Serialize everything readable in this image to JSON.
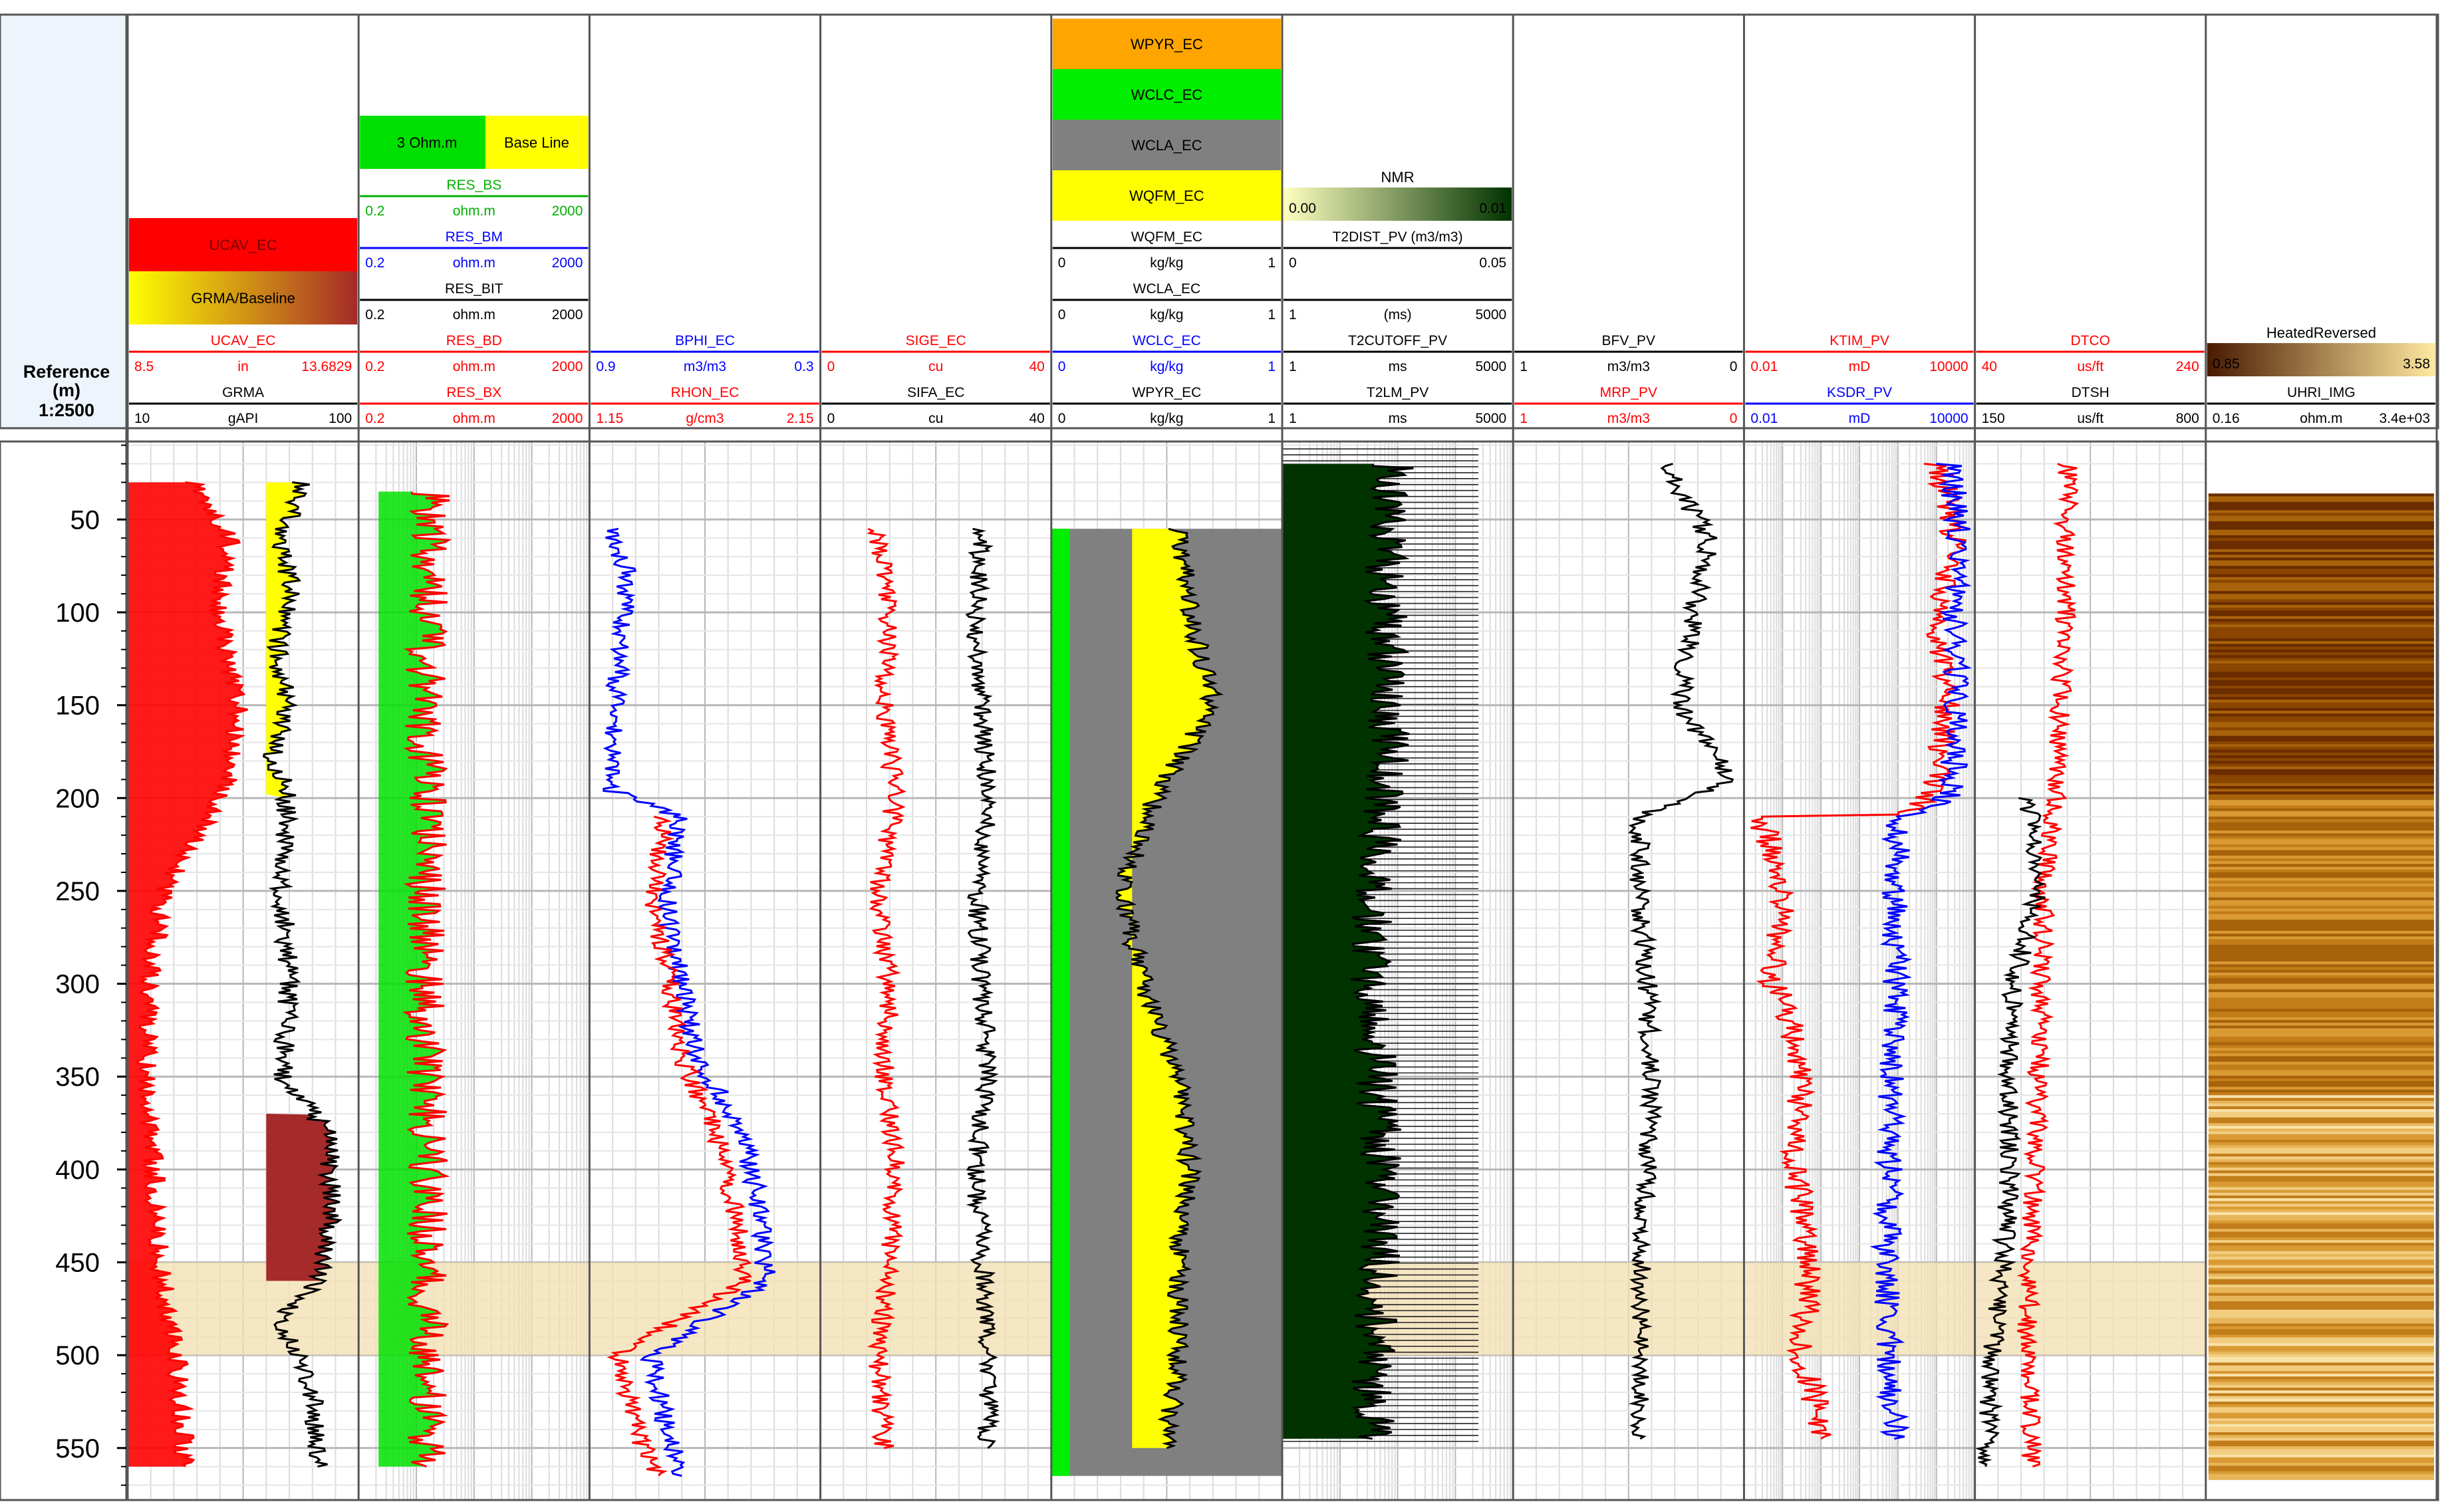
{
  "depth_column": {
    "title_line1": "Reference",
    "title_line2": "(m)",
    "scale": "1:2500",
    "ticks": [
      "50",
      "100",
      "150",
      "200",
      "250",
      "300",
      "350",
      "400",
      "450",
      "500",
      "550"
    ],
    "tick_values": [
      50,
      100,
      150,
      200,
      250,
      300,
      350,
      400,
      450,
      500,
      550
    ]
  },
  "highlight": {
    "from": 450,
    "to": 500,
    "color": "#f3dfb0"
  },
  "tracks": [
    {
      "id": "t1",
      "fills": [
        {
          "label": "UCAV_EC",
          "color": "#ff0000",
          "text_color": "#7a0000"
        },
        {
          "label": "GRMA/Baseline",
          "color_left": "#ffff00",
          "color_right": "#a52a2a",
          "text_color": "#000000"
        }
      ],
      "curves": [
        {
          "name": "UCAV_EC",
          "color": "#ff0000",
          "min": "8.5",
          "unit": "in",
          "max": "13.6829"
        },
        {
          "name": "GRMA",
          "color": "#000000",
          "min": "10",
          "unit": "gAPI",
          "max": "100"
        }
      ]
    },
    {
      "id": "t2",
      "fills": [
        {
          "label_left": "3 Ohm.m",
          "label_right": "Base Line",
          "color_left": "#00e000",
          "color_right": "#ffff00"
        }
      ],
      "curves": [
        {
          "name": "RES_BS",
          "color": "#00b000",
          "min": "0.2",
          "unit": "ohm.m",
          "max": "2000"
        },
        {
          "name": "RES_BM",
          "color": "#0000ff",
          "min": "0.2",
          "unit": "ohm.m",
          "max": "2000"
        },
        {
          "name": "RES_BIT",
          "color": "#000000",
          "min": "0.2",
          "unit": "ohm.m",
          "max": "2000"
        },
        {
          "name": "RES_BD",
          "color": "#ff0000",
          "min": "0.2",
          "unit": "ohm.m",
          "max": "2000"
        },
        {
          "name": "RES_BX",
          "color": "#ff0000",
          "min": "0.2",
          "unit": "ohm.m",
          "max": "2000"
        }
      ]
    },
    {
      "id": "t3",
      "fills": [],
      "curves": [
        {
          "name": "BPHI_EC",
          "color": "#0000ff",
          "min": "0.9",
          "unit": "m3/m3",
          "max": "0.3"
        },
        {
          "name": "RHON_EC",
          "color": "#ff0000",
          "min": "1.15",
          "unit": "g/cm3",
          "max": "2.15"
        }
      ]
    },
    {
      "id": "t4",
      "fills": [],
      "curves": [
        {
          "name": "SIGE_EC",
          "color": "#ff0000",
          "min": "0",
          "unit": "cu",
          "max": "40"
        },
        {
          "name": "SIFA_EC",
          "color": "#000000",
          "min": "0",
          "unit": "cu",
          "max": "40"
        }
      ]
    },
    {
      "id": "t5",
      "fills": [
        {
          "label": "WPYR_EC",
          "color": "#ffa500"
        },
        {
          "label": "WCLC_EC",
          "color": "#00ee00"
        },
        {
          "label": "WCLA_EC",
          "color": "#808080"
        },
        {
          "label": "WQFM_EC",
          "color": "#ffff00"
        }
      ],
      "curves": [
        {
          "name": "WQFM_EC",
          "color": "#000000",
          "min": "0",
          "unit": "kg/kg",
          "max": "1"
        },
        {
          "name": "WCLA_EC",
          "color": "#000000",
          "min": "0",
          "unit": "kg/kg",
          "max": "1"
        },
        {
          "name": "WCLC_EC",
          "color": "#0000ff",
          "min": "0",
          "unit": "kg/kg",
          "max": "1"
        },
        {
          "name": "WPYR_EC",
          "color": "#000000",
          "min": "0",
          "unit": "kg/kg",
          "max": "1"
        }
      ]
    },
    {
      "id": "t6",
      "fills": [
        {
          "label": "NMR",
          "min": "0.00",
          "max": "0.01",
          "color_left": "#ffffc0",
          "color_right": "#003300"
        }
      ],
      "curves": [
        {
          "name": "T2DIST_PV (m3/m3)",
          "color": "#000000",
          "min": "0",
          "unit": "",
          "max": "0.05"
        },
        {
          "name": "",
          "color": "#000000",
          "min": "1",
          "unit": "(ms)",
          "max": "5000"
        },
        {
          "name": "T2CUTOFF_PV",
          "color": "#000000",
          "min": "1",
          "unit": "ms",
          "max": "5000"
        },
        {
          "name": "T2LM_PV",
          "color": "#000000",
          "min": "1",
          "unit": "ms",
          "max": "5000"
        }
      ]
    },
    {
      "id": "t7",
      "fills": [],
      "curves": [
        {
          "name": "BFV_PV",
          "color": "#000000",
          "min": "1",
          "unit": "m3/m3",
          "max": "0"
        },
        {
          "name": "MRP_PV",
          "color": "#ff0000",
          "min": "1",
          "unit": "m3/m3",
          "max": "0"
        }
      ]
    },
    {
      "id": "t8",
      "fills": [],
      "curves": [
        {
          "name": "KTIM_PV",
          "color": "#ff0000",
          "min": "0.01",
          "unit": "mD",
          "max": "10000"
        },
        {
          "name": "KSDR_PV",
          "color": "#0000ff",
          "min": "0.01",
          "unit": "mD",
          "max": "10000"
        }
      ]
    },
    {
      "id": "t9",
      "fills": [],
      "curves": [
        {
          "name": "DTCO",
          "color": "#ff0000",
          "min": "40",
          "unit": "us/ft",
          "max": "240"
        },
        {
          "name": "DTSH",
          "color": "#000000",
          "min": "150",
          "unit": "us/ft",
          "max": "800"
        }
      ]
    },
    {
      "id": "t10",
      "fills": [
        {
          "label": "HeatedReversed",
          "min": "0.85",
          "max": "3.58",
          "color_left": "#4a1a00",
          "color_right": "#ffe9a0"
        }
      ],
      "curves": [
        {
          "name": "UHRI_IMG",
          "color": "#000000",
          "min": "0.16",
          "unit": "ohm.m",
          "max": "3.4e+03"
        }
      ]
    }
  ],
  "chart_data": {
    "type": "line",
    "title": "",
    "ylabel": "Reference (m)",
    "y_scale": "1:2500",
    "y_axis": "depth, increasing downward",
    "ylim": [
      10,
      580
    ],
    "grid": true,
    "series": [
      {
        "name": "GRMA",
        "x_range": [
          10,
          100
        ],
        "x_unit": "gAPI",
        "depth": [
          30,
          60,
          90,
          120,
          150,
          180,
          195,
          210,
          250,
          300,
          350,
          380,
          420,
          460,
          480,
          520,
          560
        ],
        "x": [
          78,
          70,
          74,
          68,
          72,
          66,
          72,
          72,
          70,
          73,
          70,
          88,
          90,
          85,
          70,
          82,
          84
        ]
      },
      {
        "name": "UCAV_EC",
        "x_range": [
          8.5,
          13.6829
        ],
        "x_unit": "in",
        "depth": [
          30,
          60,
          100,
          150,
          195,
          250,
          300,
          350,
          400,
          450,
          500,
          560
        ],
        "x": [
          10.0,
          10.8,
          10.5,
          11.0,
          10.7,
          9.3,
          9.0,
          8.9,
          9.1,
          9.2,
          9.6,
          9.8
        ]
      },
      {
        "name": "RES_BD",
        "x_range": [
          0.2,
          2000
        ],
        "x_unit": "ohm.m",
        "x_scale": "log",
        "depth": [
          35,
          80,
          120,
          160,
          200,
          250,
          300,
          350,
          400,
          450,
          500,
          560
        ],
        "x": [
          3.5,
          3.2,
          3.0,
          2.8,
          3.2,
          3.0,
          2.8,
          3.0,
          3.2,
          3.0,
          3.2,
          3.0
        ]
      },
      {
        "name": "BPHI_EC",
        "x_range": [
          0.9,
          0.3
        ],
        "x_unit": "m3/m3",
        "depth": [
          55,
          80,
          120,
          160,
          195,
          210,
          260,
          300,
          340,
          380,
          420,
          460,
          500,
          540,
          565
        ],
        "x": [
          0.85,
          0.8,
          0.82,
          0.84,
          0.85,
          0.67,
          0.7,
          0.66,
          0.62,
          0.5,
          0.46,
          0.44,
          0.74,
          0.7,
          0.66
        ]
      },
      {
        "name": "RHON_EC",
        "x_range": [
          1.15,
          2.15
        ],
        "x_unit": "g/cm3",
        "depth": [
          210,
          260,
          300,
          340,
          380,
          420,
          460,
          500,
          540,
          565
        ],
        "x": [
          1.47,
          1.43,
          1.5,
          1.55,
          1.7,
          1.78,
          1.82,
          1.27,
          1.35,
          1.45
        ]
      },
      {
        "name": "SIGE_EC",
        "x_range": [
          0,
          40
        ],
        "x_unit": "cu",
        "depth": [
          55,
          100,
          150,
          200,
          250,
          300,
          350,
          400,
          450,
          500,
          550
        ],
        "x": [
          10,
          12,
          11,
          13,
          10,
          12,
          11,
          13,
          12,
          10,
          11
        ]
      },
      {
        "name": "SIFA_EC",
        "x_range": [
          0,
          40
        ],
        "x_unit": "cu",
        "depth": [
          55,
          100,
          150,
          200,
          250,
          300,
          350,
          400,
          450,
          500,
          550
        ],
        "x": [
          28,
          27,
          28,
          29,
          27,
          28,
          29,
          27,
          28,
          29,
          29
        ]
      },
      {
        "name": "WQFM_EC",
        "x_range": [
          0,
          1
        ],
        "x_unit": "kg/kg",
        "depth": [
          55,
          100,
          150,
          200,
          250,
          300,
          350,
          400,
          450,
          500,
          550
        ],
        "x": [
          0.55,
          0.6,
          0.7,
          0.45,
          0.3,
          0.4,
          0.55,
          0.6,
          0.55,
          0.55,
          0.5
        ]
      },
      {
        "name": "T2LM_PV",
        "x_range": [
          1,
          5000
        ],
        "x_unit": "ms",
        "x_scale": "log",
        "depth": [
          20,
          60,
          100,
          150,
          200,
          250,
          300,
          350,
          400,
          450,
          500,
          545
        ],
        "x": [
          60,
          50,
          45,
          55,
          45,
          30,
          28,
          32,
          40,
          35,
          30,
          28
        ]
      },
      {
        "name": "BFV_PV",
        "x_range": [
          1,
          0
        ],
        "x_unit": "m3/m3",
        "depth": [
          20,
          60,
          100,
          150,
          190,
          210,
          250,
          300,
          350,
          400,
          450,
          500,
          545
        ],
        "x": [
          0.35,
          0.15,
          0.22,
          0.28,
          0.05,
          0.45,
          0.45,
          0.42,
          0.4,
          0.42,
          0.45,
          0.44,
          0.45
        ]
      },
      {
        "name": "KTIM_PV",
        "x_range": [
          0.01,
          10000
        ],
        "x_unit": "mD",
        "x_scale": "log",
        "depth": [
          20,
          60,
          100,
          150,
          195,
          210,
          250,
          300,
          350,
          400,
          450,
          500,
          545
        ],
        "x": [
          1000,
          3000,
          1000,
          2000,
          800,
          0.02,
          0.1,
          0.05,
          0.3,
          0.2,
          0.5,
          0.3,
          1
        ]
      },
      {
        "name": "KSDR_PV",
        "x_range": [
          0.01,
          10000
        ],
        "x_unit": "mD",
        "x_scale": "log",
        "depth": [
          20,
          60,
          100,
          150,
          195,
          210,
          250,
          300,
          350,
          400,
          450,
          500,
          545
        ],
        "x": [
          2000,
          4000,
          3000,
          3500,
          2500,
          100,
          80,
          90,
          70,
          60,
          50,
          60,
          80
        ]
      },
      {
        "name": "DTCO",
        "x_range": [
          40,
          240
        ],
        "x_unit": "us/ft",
        "depth": [
          20,
          100,
          200,
          250,
          300,
          350,
          400,
          450,
          500,
          560
        ],
        "x": [
          120,
          118,
          110,
          100,
          98,
          95,
          92,
          88,
          85,
          90
        ]
      },
      {
        "name": "DTSH",
        "x_range": [
          150,
          800
        ],
        "x_unit": "us/ft",
        "depth": [
          200,
          250,
          300,
          350,
          400,
          450,
          500,
          560
        ],
        "x": [
          300,
          330,
          260,
          240,
          250,
          230,
          200,
          180
        ]
      }
    ]
  }
}
